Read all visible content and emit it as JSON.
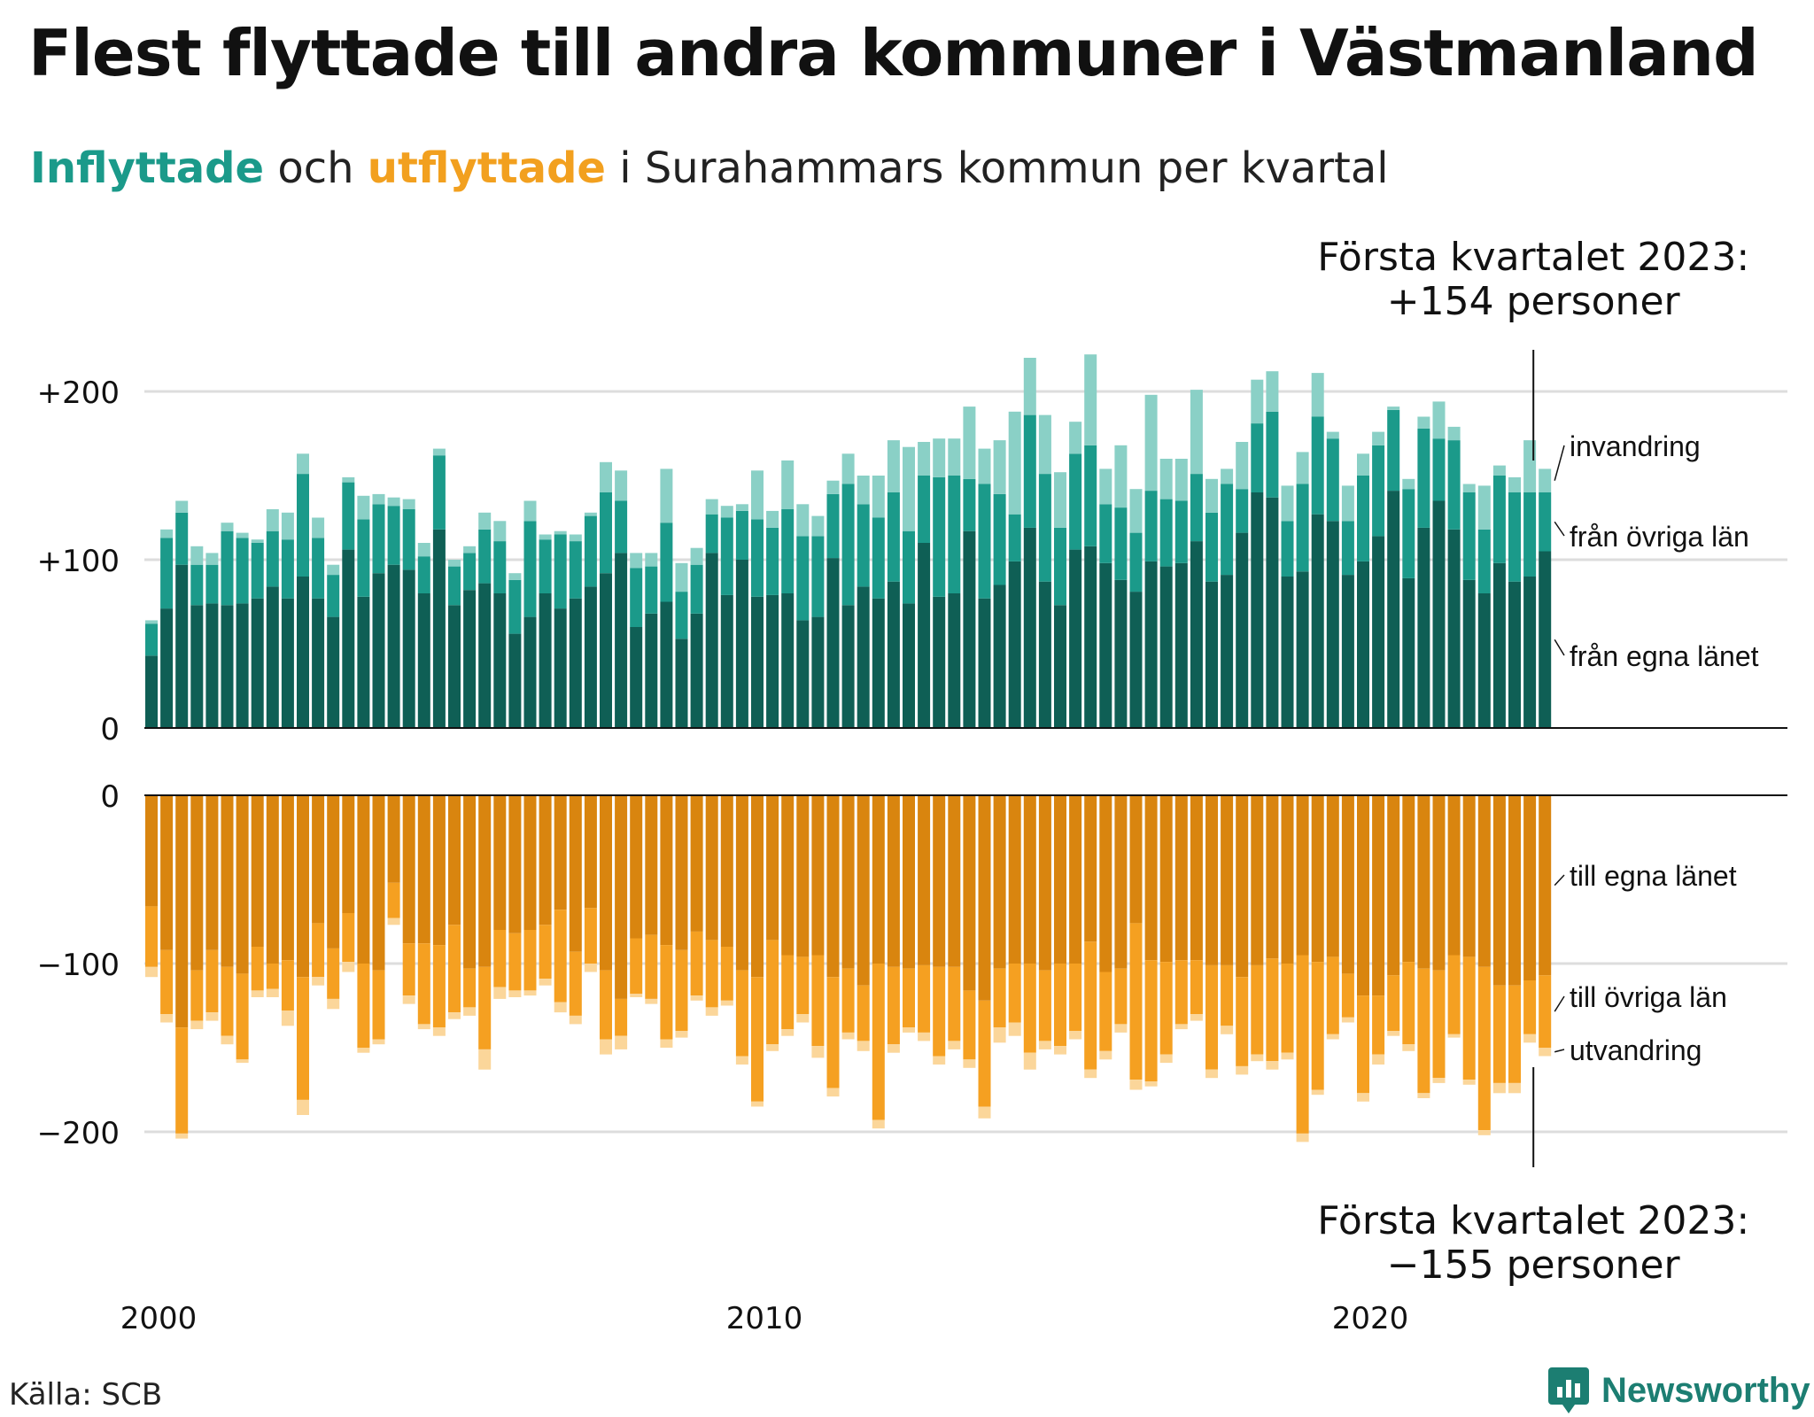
{
  "title": "Flest flyttade till andra kommuner i Västmanland",
  "subtitle": {
    "in_word": "Inflyttade",
    "middle": " och ",
    "out_word": "utflyttade",
    "rest": " i Surahammars kommun per kvartal"
  },
  "source": "Källa: SCB",
  "brand": "Newsworthy",
  "colors": {
    "in_own": "#0f5f55",
    "in_other": "#1b9a8a",
    "in_immigration": "#8ad0c6",
    "out_own": "#d9850f",
    "out_other": "#f5a021",
    "out_emigration": "#fbd69a",
    "grid": "#dddddd",
    "brand": "#1c7e72"
  },
  "annotations": {
    "top_line1": "Första kvartalet 2023:",
    "top_line2": "+154 personer",
    "bottom_line1": "Första kvartalet 2023:",
    "bottom_line2": "−155 personer"
  },
  "chart_data": [
    {
      "type": "bar",
      "stacked": true,
      "title": "Inflyttade",
      "start": "2000 Q1",
      "end": "2023 Q1",
      "period": "quarter",
      "y_ticks": [
        {
          "value": 0,
          "label": "0"
        },
        {
          "value": 100,
          "label": "+100"
        },
        {
          "value": 200,
          "label": "+200"
        }
      ],
      "ylim": [
        0,
        230
      ],
      "x_ticks": [
        {
          "year": 2000,
          "label": "2000"
        },
        {
          "year": 2010,
          "label": "2010"
        },
        {
          "year": 2020,
          "label": "2020"
        }
      ],
      "series": [
        {
          "name": "från egna länet",
          "values": [
            43,
            71,
            97,
            73,
            74,
            73,
            74,
            77,
            84,
            77,
            90,
            77,
            66,
            106,
            78,
            92,
            97,
            94,
            80,
            118,
            73,
            82,
            86,
            80,
            56,
            66,
            80,
            71,
            77,
            84,
            92,
            104,
            60,
            68,
            75,
            53,
            68,
            104,
            79,
            100,
            78,
            79,
            80,
            64,
            66,
            101,
            73,
            84,
            77,
            87,
            74,
            110,
            78,
            80,
            117,
            77,
            85,
            99,
            119,
            87,
            73,
            106,
            108,
            98,
            88,
            81,
            99,
            96,
            98,
            111,
            87,
            91,
            116,
            140,
            137,
            90,
            93,
            127,
            123,
            91,
            99,
            114,
            141,
            89,
            119,
            135,
            118,
            88,
            80,
            98,
            87,
            90,
            105
          ],
          "label_show": true
        },
        {
          "name": "från övriga län",
          "values": [
            19,
            42,
            31,
            24,
            23,
            44,
            39,
            33,
            33,
            35,
            61,
            36,
            25,
            40,
            46,
            41,
            35,
            36,
            22,
            44,
            23,
            22,
            32,
            31,
            32,
            57,
            32,
            44,
            34,
            42,
            48,
            31,
            35,
            28,
            47,
            28,
            29,
            23,
            46,
            29,
            46,
            40,
            50,
            50,
            48,
            38,
            72,
            49,
            48,
            53,
            43,
            40,
            71,
            70,
            31,
            68,
            54,
            28,
            67,
            64,
            46,
            57,
            60,
            35,
            43,
            35,
            42,
            40,
            37,
            40,
            41,
            54,
            26,
            41,
            51,
            33,
            52,
            58,
            49,
            32,
            51,
            54,
            48,
            53,
            59,
            37,
            53,
            52,
            38,
            52,
            53,
            50,
            35
          ],
          "label_show": true
        },
        {
          "name": "invandring",
          "values": [
            2,
            5,
            7,
            11,
            7,
            5,
            3,
            2,
            13,
            16,
            12,
            12,
            6,
            3,
            14,
            6,
            5,
            6,
            8,
            4,
            4,
            4,
            10,
            12,
            4,
            12,
            3,
            2,
            4,
            2,
            18,
            18,
            9,
            8,
            32,
            17,
            10,
            9,
            7,
            4,
            29,
            10,
            29,
            19,
            12,
            8,
            18,
            17,
            25,
            31,
            50,
            20,
            23,
            22,
            43,
            21,
            32,
            61,
            34,
            35,
            33,
            19,
            54,
            21,
            37,
            26,
            57,
            24,
            25,
            50,
            20,
            9,
            28,
            26,
            24,
            21,
            19,
            26,
            4,
            21,
            13,
            8,
            2,
            6,
            7,
            22,
            8,
            5,
            26,
            6,
            9,
            31,
            14
          ],
          "label_show": true
        }
      ]
    },
    {
      "type": "bar",
      "stacked": true,
      "title": "Utflyttade",
      "start": "2000 Q1",
      "end": "2023 Q1",
      "period": "quarter",
      "y_ticks": [
        {
          "value": 0,
          "label": "0"
        },
        {
          "value": -100,
          "label": "−100"
        },
        {
          "value": -200,
          "label": "−200"
        }
      ],
      "ylim": [
        -225,
        0
      ],
      "series": [
        {
          "name": "till egna länet",
          "values": [
            -66,
            -92,
            -138,
            -104,
            -92,
            -102,
            -106,
            -90,
            -100,
            -98,
            -108,
            -76,
            -91,
            -70,
            -100,
            -104,
            -52,
            -88,
            -88,
            -89,
            -77,
            -103,
            -102,
            -80,
            -82,
            -80,
            -77,
            -68,
            -93,
            -67,
            -104,
            -121,
            -85,
            -83,
            -89,
            -92,
            -81,
            -86,
            -90,
            -104,
            -108,
            -86,
            -95,
            -96,
            -95,
            -108,
            -103,
            -113,
            -100,
            -102,
            -103,
            -101,
            -102,
            -102,
            -116,
            -122,
            -103,
            -100,
            -100,
            -104,
            -100,
            -100,
            -87,
            -105,
            -103,
            -76,
            -98,
            -99,
            -98,
            -98,
            -101,
            -101,
            -108,
            -101,
            -97,
            -100,
            -95,
            -99,
            -96,
            -106,
            -119,
            -119,
            -107,
            -99,
            -103,
            -104,
            -95,
            -96,
            -102,
            -113,
            -113,
            -110,
            -107
          ],
          "label_show": true
        },
        {
          "name": "till övriga län",
          "values": [
            -36,
            -38,
            -63,
            -30,
            -37,
            -41,
            -51,
            -26,
            -15,
            -30,
            -73,
            -32,
            -30,
            -29,
            -50,
            -41,
            -21,
            -31,
            -48,
            -49,
            -52,
            -23,
            -49,
            -34,
            -34,
            -36,
            -32,
            -55,
            -38,
            -33,
            -41,
            -22,
            -33,
            -38,
            -56,
            -48,
            -38,
            -40,
            -32,
            -51,
            -74,
            -62,
            -44,
            -34,
            -54,
            -66,
            -38,
            -33,
            -93,
            -46,
            -35,
            -40,
            -53,
            -44,
            -41,
            -63,
            -35,
            -35,
            -53,
            -42,
            -49,
            -40,
            -76,
            -47,
            -33,
            -93,
            -72,
            -55,
            -38,
            -32,
            -62,
            -36,
            -53,
            -53,
            -61,
            -53,
            -106,
            -76,
            -46,
            -26,
            -58,
            -35,
            -33,
            -49,
            -74,
            -64,
            -47,
            -73,
            -97,
            -58,
            -58,
            -32,
            -43
          ],
          "label_show": true
        },
        {
          "name": "utvandring",
          "values": [
            -6,
            -5,
            -3,
            -5,
            -5,
            -5,
            -2,
            -4,
            -5,
            -9,
            -9,
            -5,
            -6,
            -6,
            -3,
            -3,
            -4,
            -5,
            -3,
            -5,
            -4,
            -5,
            -12,
            -7,
            -4,
            -3,
            -4,
            -6,
            -5,
            -5,
            -9,
            -8,
            -2,
            -3,
            -5,
            -4,
            -3,
            -5,
            -3,
            -5,
            -3,
            -4,
            -4,
            -5,
            -7,
            -5,
            -4,
            -6,
            -5,
            -5,
            -3,
            -5,
            -5,
            -5,
            -5,
            -7,
            -9,
            -8,
            -10,
            -5,
            -5,
            -5,
            -5,
            -5,
            -5,
            -6,
            -3,
            -5,
            -3,
            -4,
            -5,
            -5,
            -5,
            -4,
            -5,
            -4,
            -5,
            -3,
            -3,
            -3,
            -5,
            -6,
            -3,
            -4,
            -3,
            -3,
            -2,
            -3,
            -3,
            -6,
            -6,
            -5,
            -5
          ],
          "label_show": true
        }
      ]
    }
  ]
}
